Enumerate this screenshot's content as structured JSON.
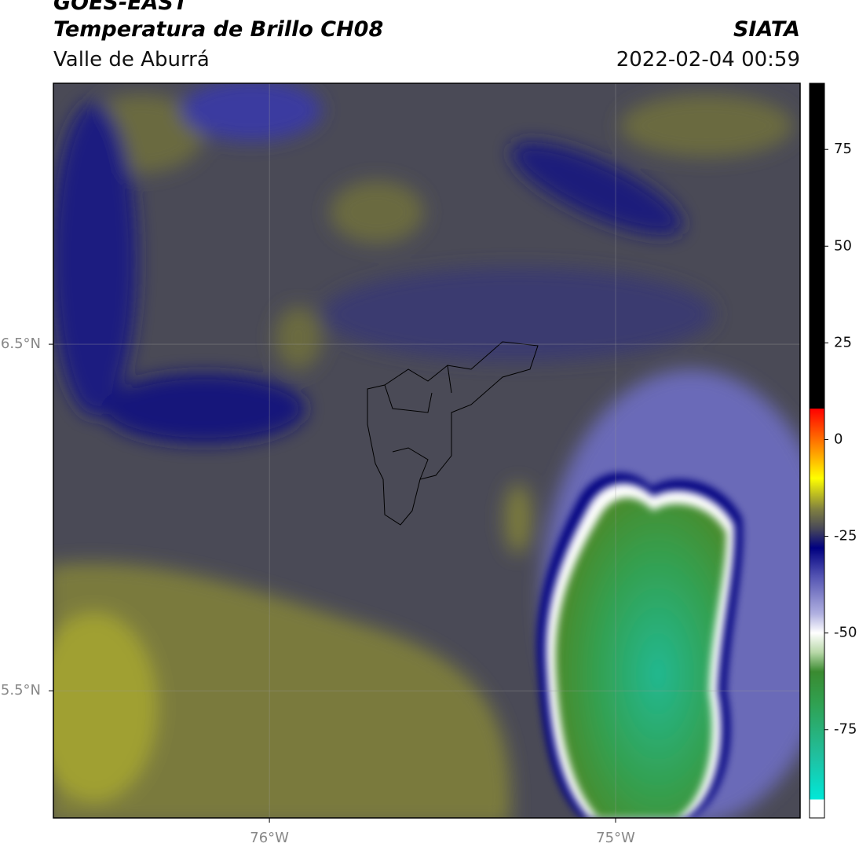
{
  "header": {
    "title": "GOES-EAST",
    "subtitle": "Temperatura de Brillo CH08",
    "region": "Valle de Aburrá",
    "source": "SIATA",
    "timestamp": "2022-02-04 00:59"
  },
  "map": {
    "lon_range": [
      -76.624,
      -74.467
    ],
    "lat_range": [
      5.133,
      7.253
    ],
    "lon_ticks": [
      {
        "value": -76,
        "label": "76°W"
      },
      {
        "value": -75,
        "label": "75°W"
      }
    ],
    "lat_ticks": [
      {
        "value": 6.5,
        "label": "6.5°N"
      },
      {
        "value": 5.5,
        "label": "5.5°N"
      }
    ],
    "grid": true
  },
  "colorbar": {
    "range": [
      -97.8,
      92.1
    ],
    "ticks": [
      75,
      50,
      25,
      0,
      -25,
      -50,
      -75
    ],
    "stops": [
      [
        -97.8,
        "#ffffff"
      ],
      [
        -93,
        "#ffffff"
      ],
      [
        -93,
        "#00e8d8"
      ],
      [
        -82,
        "#20c0a0"
      ],
      [
        -68,
        "#30a050"
      ],
      [
        -60,
        "#3a8a30"
      ],
      [
        -55,
        "#b8d8a8"
      ],
      [
        -50,
        "#ffffff"
      ],
      [
        -45,
        "#b0b0e0"
      ],
      [
        -35,
        "#5050b0"
      ],
      [
        -28,
        "#000080"
      ],
      [
        -23,
        "#484858"
      ],
      [
        -18,
        "#808040"
      ],
      [
        -10,
        "#ffff00"
      ],
      [
        -3,
        "#ff9900"
      ],
      [
        8,
        "#ff0000"
      ],
      [
        8,
        "#000000"
      ],
      [
        92.1,
        "#000000"
      ]
    ]
  }
}
